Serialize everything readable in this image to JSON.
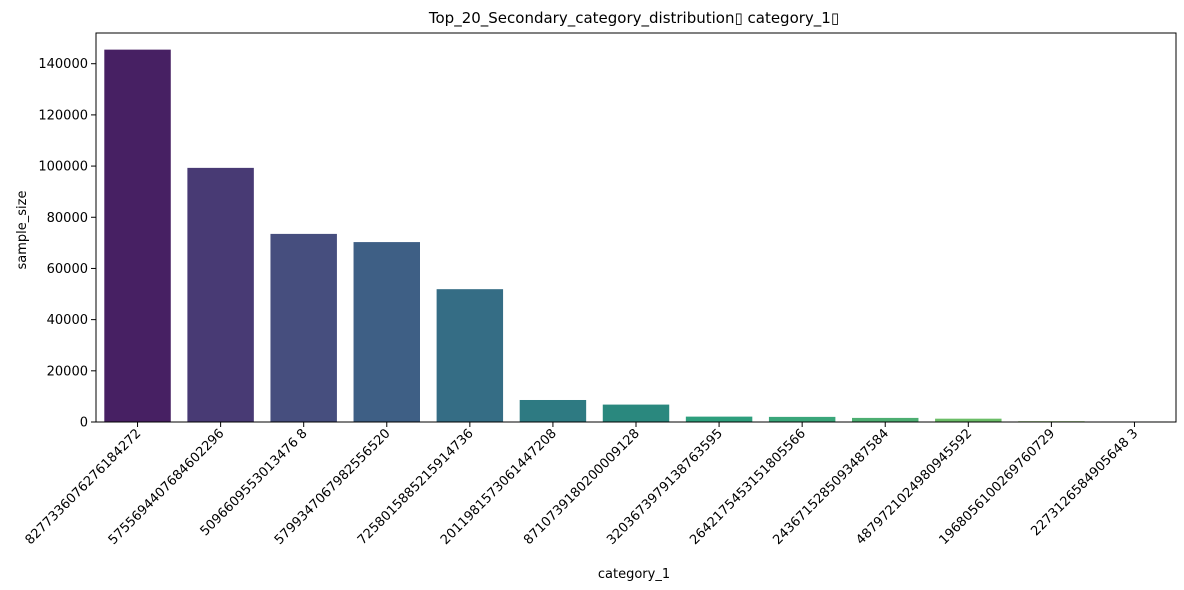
{
  "chart_data": {
    "type": "bar",
    "title": "Top_20_Secondary_category_distribution▯ category_1▯",
    "xlabel": "category_1",
    "ylabel": "sample_size",
    "ylim": [
      0,
      152000
    ],
    "yticks": [
      0,
      20000,
      40000,
      60000,
      80000,
      100000,
      120000,
      140000
    ],
    "grid": false,
    "legend": "none",
    "categories": [
      "8277336076276184272",
      "5755694407684602296",
      "5096609553013476 8",
      "5799347067982556520",
      "7258015885215914736",
      "2011981573061447208",
      "8710739180200009128",
      "3203673979138763595",
      "2642175453151805566",
      "2436715285093487584",
      "4879721024980945592",
      "1968056100269760729",
      "2273126584905648 3"
    ],
    "values": [
      145500,
      99300,
      73500,
      70300,
      51900,
      8600,
      6800,
      2100,
      2000,
      1600,
      1300,
      300,
      200
    ],
    "colors": [
      "#472063",
      "#483a74",
      "#464e7e",
      "#3e5f85",
      "#356d85",
      "#2e7a82",
      "#2a887e",
      "#2e9f7d",
      "#3aa67a",
      "#4dae72",
      "#6bbd67",
      "#8bc85c",
      "#a9d253"
    ]
  }
}
